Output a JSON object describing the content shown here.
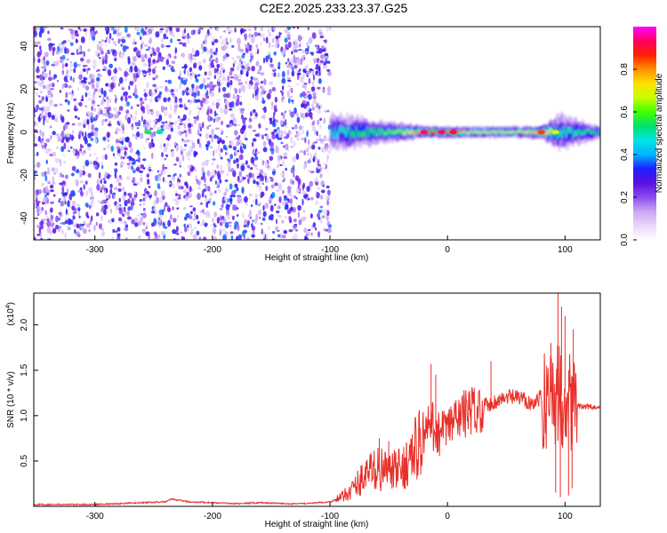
{
  "title": "C2E2.2025.233.23.37.G25",
  "chart_data": [
    {
      "type": "heatmap",
      "xlabel": "Height of straight line (km)",
      "ylabel": "Frequency (Hz)",
      "xlim": [
        -352,
        130
      ],
      "ylim": [
        -50,
        49
      ],
      "xticks": [
        -300,
        -200,
        -100,
        0,
        100
      ],
      "yticks": [
        -40,
        -20,
        0,
        20,
        40
      ],
      "colorbar": {
        "label": "Normalized spectral amplitude",
        "range": [
          0,
          1
        ],
        "ticks": [
          0.0,
          0.2,
          0.4,
          0.6,
          0.8
        ],
        "colors": [
          "#ffffff",
          "#e8d8f8",
          "#c9a6f5",
          "#8a4cf0",
          "#5a0fe0",
          "#1f1fff",
          "#00b4ff",
          "#00e5e5",
          "#00e070",
          "#40ff00",
          "#c8ff00",
          "#ffe000",
          "#ff9000",
          "#ff2000",
          "#ff0060",
          "#ff00ff"
        ]
      },
      "grid": false,
      "description_points": {
        "noise_region_x": [
          -352,
          -100
        ],
        "noise_amplitude": 0.25,
        "band_center_hz": 0,
        "band_segments": [
          {
            "x": -100,
            "half_width_hz": 8,
            "amp": 0.35
          },
          {
            "x": -80,
            "half_width_hz": 7,
            "amp": 0.45
          },
          {
            "x": -60,
            "half_width_hz": 5,
            "amp": 0.5
          },
          {
            "x": -40,
            "half_width_hz": 4,
            "amp": 0.55
          },
          {
            "x": -20,
            "half_width_hz": 2.5,
            "amp": 0.8
          },
          {
            "x": 0,
            "half_width_hz": 2.5,
            "amp": 0.85
          },
          {
            "x": 20,
            "half_width_hz": 2.5,
            "amp": 0.6
          },
          {
            "x": 40,
            "half_width_hz": 2.5,
            "amp": 0.6
          },
          {
            "x": 60,
            "half_width_hz": 2.5,
            "amp": 0.6
          },
          {
            "x": 80,
            "half_width_hz": 3,
            "amp": 0.75
          },
          {
            "x": 95,
            "half_width_hz": 8,
            "amp": 0.4
          },
          {
            "x": 130,
            "half_width_hz": 2.5,
            "amp": 0.45
          }
        ]
      }
    },
    {
      "type": "line",
      "xlabel": "Height of straight line (km)",
      "ylabel": "SNR (10 * v/v)",
      "yscale_label": "(x10",
      "yscale_exponent": "4",
      "xlim": [
        -352,
        130
      ],
      "ylim": [
        0,
        2.35
      ],
      "xticks": [
        -300,
        -200,
        -100,
        0,
        100
      ],
      "yticks": [
        0.5,
        1.0,
        1.5,
        2.0
      ],
      "ytick_labels": [
        "0.5",
        "1.0",
        "1.5",
        "2.0"
      ],
      "grid": false,
      "series": [
        {
          "color": "#e8302a",
          "x": [
            -352,
            -320,
            -300,
            -280,
            -260,
            -240,
            -235,
            -220,
            -200,
            -180,
            -160,
            -140,
            -120,
            -100,
            -90,
            -80,
            -70,
            -60,
            -50,
            -40,
            -30,
            -25,
            -20,
            -15,
            -10,
            -5,
            0,
            10,
            20,
            30,
            40,
            50,
            60,
            70,
            75,
            80,
            85,
            90,
            95,
            100,
            105,
            110,
            120,
            130
          ],
          "y": [
            0.02,
            0.02,
            0.02,
            0.03,
            0.04,
            0.05,
            0.08,
            0.05,
            0.04,
            0.03,
            0.04,
            0.03,
            0.03,
            0.05,
            0.1,
            0.2,
            0.35,
            0.42,
            0.38,
            0.4,
            0.55,
            0.7,
            0.75,
            0.9,
            0.85,
            0.8,
            0.85,
            1.0,
            1.05,
            1.1,
            1.15,
            1.2,
            1.2,
            1.15,
            1.15,
            1.2,
            1.2,
            1.3,
            1.2,
            1.25,
            1.2,
            1.1,
            1.1,
            1.08
          ],
          "spikes": [
            {
              "x": -58,
              "y": 0.75
            },
            {
              "x": -50,
              "y": 0.72
            },
            {
              "x": -35,
              "y": 0.7
            },
            {
              "x": -14,
              "y": 1.57
            },
            {
              "x": -10,
              "y": 1.45
            },
            {
              "x": 37,
              "y": 1.6
            },
            {
              "x": 88,
              "y": 1.8
            },
            {
              "x": 94,
              "y": 2.35
            },
            {
              "x": 97,
              "y": 2.2
            },
            {
              "x": 100,
              "y": 2.1
            },
            {
              "x": 107,
              "y": 1.95
            },
            {
              "x": 92,
              "y": 0.15
            },
            {
              "x": 96,
              "y": 0.1
            },
            {
              "x": 103,
              "y": 0.12
            },
            {
              "x": 106,
              "y": 0.2
            }
          ]
        }
      ]
    }
  ]
}
